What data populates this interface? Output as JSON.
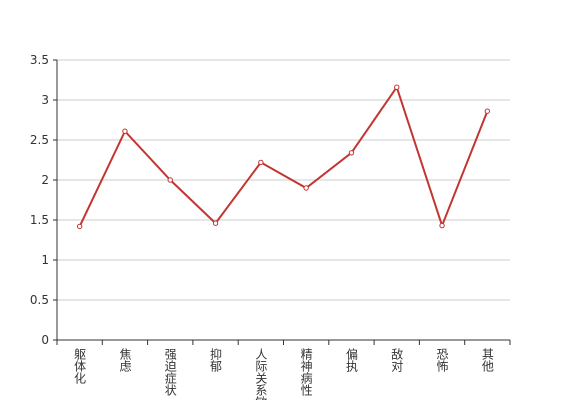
{
  "chart_data": {
    "type": "line",
    "categories": [
      "躯体化",
      "焦虑",
      "强迫症状",
      "抑郁",
      "人际关系敏感",
      "精神病性",
      "偏执",
      "敌对",
      "恐怖",
      "其他"
    ],
    "series": [
      {
        "color": "#c23531",
        "values": [
          1.42,
          2.61,
          2.0,
          1.46,
          2.22,
          1.9,
          2.34,
          3.16,
          1.43,
          2.86
        ]
      }
    ],
    "ylim": [
      0,
      3.5
    ],
    "yticks": [
      0,
      0.5,
      1,
      1.5,
      2,
      2.5,
      3,
      3.5
    ],
    "grid": true
  }
}
